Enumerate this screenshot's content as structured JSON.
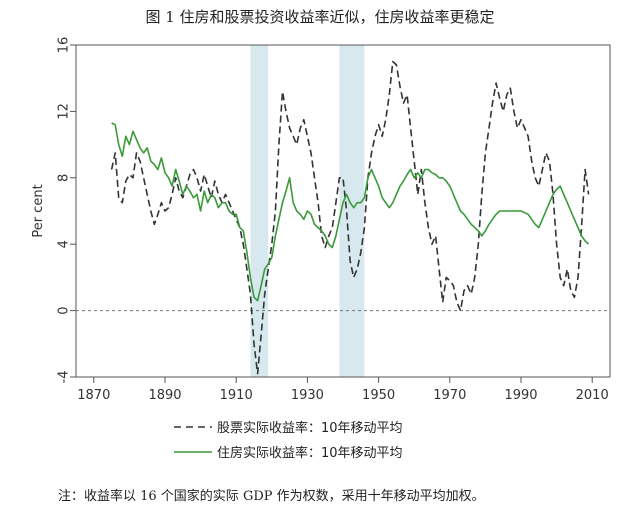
{
  "title": "图 1  住房和股票投资收益率近似，住房收益率更稳定",
  "note": "注：收益率以 16 个国家的实际 GDP 作为权数，采用十年移动平均加权。",
  "chart_data": {
    "type": "line",
    "ylabel": "Per cent",
    "xlim": [
      1865,
      2015
    ],
    "ylim": [
      -4,
      16
    ],
    "x_ticks": [
      1870,
      1890,
      1910,
      1930,
      1950,
      1970,
      1990,
      2010
    ],
    "y_ticks": [
      -4,
      0,
      4,
      8,
      12,
      16
    ],
    "shaded_periods": [
      [
        1914,
        1919
      ],
      [
        1939,
        1946
      ]
    ],
    "reference_line": 0,
    "legend_position": "bottom",
    "colors": {
      "stock": "#333333",
      "housing": "#3a9a3a",
      "shade": "#d7e9ee"
    },
    "series": [
      {
        "name": "股票实际收益率：10年移动平均",
        "style": "dashed",
        "points": [
          [
            1875,
            8.5
          ],
          [
            1876,
            9.5
          ],
          [
            1877,
            6.8
          ],
          [
            1878,
            6.5
          ],
          [
            1879,
            7.8
          ],
          [
            1880,
            8.2
          ],
          [
            1881,
            8.0
          ],
          [
            1882,
            9.5
          ],
          [
            1883,
            9.0
          ],
          [
            1884,
            8.0
          ],
          [
            1885,
            7.0
          ],
          [
            1886,
            6.0
          ],
          [
            1887,
            5.2
          ],
          [
            1888,
            5.8
          ],
          [
            1889,
            6.5
          ],
          [
            1890,
            6.0
          ],
          [
            1891,
            6.2
          ],
          [
            1892,
            7.0
          ],
          [
            1893,
            8.0
          ],
          [
            1894,
            7.2
          ],
          [
            1895,
            6.8
          ],
          [
            1896,
            7.5
          ],
          [
            1897,
            8.2
          ],
          [
            1898,
            8.5
          ],
          [
            1899,
            8.0
          ],
          [
            1900,
            7.2
          ],
          [
            1901,
            8.2
          ],
          [
            1902,
            7.5
          ],
          [
            1903,
            6.8
          ],
          [
            1904,
            7.8
          ],
          [
            1905,
            7.0
          ],
          [
            1906,
            6.5
          ],
          [
            1907,
            7.0
          ],
          [
            1908,
            6.5
          ],
          [
            1909,
            6.0
          ],
          [
            1910,
            5.5
          ],
          [
            1911,
            5.0
          ],
          [
            1912,
            4.0
          ],
          [
            1913,
            2.5
          ],
          [
            1914,
            1.0
          ],
          [
            1915,
            -2.0
          ],
          [
            1916,
            -3.8
          ],
          [
            1917,
            -1.5
          ],
          [
            1918,
            1.0
          ],
          [
            1919,
            2.5
          ],
          [
            1920,
            4.0
          ],
          [
            1921,
            6.0
          ],
          [
            1922,
            10.0
          ],
          [
            1923,
            13.2
          ],
          [
            1924,
            12.0
          ],
          [
            1925,
            11.0
          ],
          [
            1926,
            10.5
          ],
          [
            1927,
            10.0
          ],
          [
            1928,
            11.0
          ],
          [
            1929,
            11.5
          ],
          [
            1930,
            10.5
          ],
          [
            1931,
            9.5
          ],
          [
            1932,
            8.0
          ],
          [
            1933,
            6.5
          ],
          [
            1934,
            4.5
          ],
          [
            1935,
            3.8
          ],
          [
            1936,
            4.5
          ],
          [
            1937,
            5.0
          ],
          [
            1938,
            6.5
          ],
          [
            1939,
            8.0
          ],
          [
            1940,
            8.0
          ],
          [
            1941,
            6.0
          ],
          [
            1942,
            3.0
          ],
          [
            1943,
            2.0
          ],
          [
            1944,
            2.5
          ],
          [
            1945,
            3.5
          ],
          [
            1946,
            5.0
          ],
          [
            1947,
            8.0
          ],
          [
            1948,
            9.5
          ],
          [
            1949,
            10.5
          ],
          [
            1950,
            11.2
          ],
          [
            1951,
            10.5
          ],
          [
            1952,
            11.5
          ],
          [
            1953,
            13.0
          ],
          [
            1954,
            15.0
          ],
          [
            1955,
            14.8
          ],
          [
            1956,
            13.5
          ],
          [
            1957,
            12.5
          ],
          [
            1958,
            13.0
          ],
          [
            1959,
            11.0
          ],
          [
            1960,
            9.0
          ],
          [
            1961,
            7.0
          ],
          [
            1962,
            8.5
          ],
          [
            1963,
            6.5
          ],
          [
            1964,
            5.0
          ],
          [
            1965,
            4.0
          ],
          [
            1966,
            4.5
          ],
          [
            1967,
            2.5
          ],
          [
            1968,
            0.5
          ],
          [
            1969,
            2.0
          ],
          [
            1970,
            1.8
          ],
          [
            1971,
            1.5
          ],
          [
            1972,
            0.5
          ],
          [
            1973,
            0.0
          ],
          [
            1974,
            1.2
          ],
          [
            1975,
            1.5
          ],
          [
            1976,
            1.0
          ],
          [
            1977,
            2.0
          ],
          [
            1978,
            4.0
          ],
          [
            1979,
            7.0
          ],
          [
            1980,
            9.5
          ],
          [
            1981,
            11.0
          ],
          [
            1982,
            12.5
          ],
          [
            1983,
            13.7
          ],
          [
            1984,
            12.8
          ],
          [
            1985,
            12.0
          ],
          [
            1986,
            13.0
          ],
          [
            1987,
            13.4
          ],
          [
            1988,
            12.0
          ],
          [
            1989,
            11.0
          ],
          [
            1990,
            11.5
          ],
          [
            1991,
            11.0
          ],
          [
            1992,
            10.5
          ],
          [
            1993,
            9.0
          ],
          [
            1994,
            8.0
          ],
          [
            1995,
            7.5
          ],
          [
            1996,
            8.5
          ],
          [
            1997,
            9.5
          ],
          [
            1998,
            9.0
          ],
          [
            1999,
            7.0
          ],
          [
            2000,
            4.0
          ],
          [
            2001,
            2.0
          ],
          [
            2002,
            1.5
          ],
          [
            2003,
            2.5
          ],
          [
            2004,
            1.2
          ],
          [
            2005,
            0.8
          ],
          [
            2006,
            2.0
          ],
          [
            2007,
            5.0
          ],
          [
            2008,
            8.5
          ],
          [
            2009,
            7.0
          ]
        ]
      },
      {
        "name": "住房实际收益率：10年移动平均",
        "style": "solid",
        "points": [
          [
            1875,
            11.3
          ],
          [
            1876,
            11.2
          ],
          [
            1877,
            10.0
          ],
          [
            1878,
            9.3
          ],
          [
            1879,
            10.5
          ],
          [
            1880,
            10.0
          ],
          [
            1881,
            10.8
          ],
          [
            1882,
            10.3
          ],
          [
            1883,
            9.8
          ],
          [
            1884,
            9.5
          ],
          [
            1885,
            9.8
          ],
          [
            1886,
            9.0
          ],
          [
            1887,
            8.8
          ],
          [
            1888,
            8.5
          ],
          [
            1889,
            9.2
          ],
          [
            1890,
            8.3
          ],
          [
            1891,
            8.0
          ],
          [
            1892,
            7.5
          ],
          [
            1893,
            8.5
          ],
          [
            1894,
            7.8
          ],
          [
            1895,
            7.0
          ],
          [
            1896,
            7.5
          ],
          [
            1897,
            7.2
          ],
          [
            1898,
            6.8
          ],
          [
            1899,
            7.0
          ],
          [
            1900,
            6.0
          ],
          [
            1901,
            7.2
          ],
          [
            1902,
            6.5
          ],
          [
            1903,
            7.0
          ],
          [
            1904,
            6.8
          ],
          [
            1905,
            6.2
          ],
          [
            1906,
            6.5
          ],
          [
            1907,
            6.5
          ],
          [
            1908,
            6.0
          ],
          [
            1909,
            5.8
          ],
          [
            1910,
            5.8
          ],
          [
            1911,
            5.0
          ],
          [
            1912,
            4.8
          ],
          [
            1913,
            3.5
          ],
          [
            1914,
            2.0
          ],
          [
            1915,
            0.8
          ],
          [
            1916,
            0.6
          ],
          [
            1917,
            1.5
          ],
          [
            1918,
            2.5
          ],
          [
            1919,
            2.8
          ],
          [
            1920,
            3.2
          ],
          [
            1921,
            4.5
          ],
          [
            1922,
            5.5
          ],
          [
            1923,
            6.5
          ],
          [
            1924,
            7.2
          ],
          [
            1925,
            8.0
          ],
          [
            1926,
            6.5
          ],
          [
            1927,
            6.0
          ],
          [
            1928,
            5.8
          ],
          [
            1929,
            5.5
          ],
          [
            1930,
            6.0
          ],
          [
            1931,
            5.8
          ],
          [
            1932,
            5.2
          ],
          [
            1933,
            5.0
          ],
          [
            1934,
            4.8
          ],
          [
            1935,
            4.5
          ],
          [
            1936,
            4.0
          ],
          [
            1937,
            3.8
          ],
          [
            1938,
            4.5
          ],
          [
            1939,
            5.5
          ],
          [
            1940,
            6.5
          ],
          [
            1941,
            7.0
          ],
          [
            1942,
            6.5
          ],
          [
            1943,
            6.2
          ],
          [
            1944,
            6.5
          ],
          [
            1945,
            6.5
          ],
          [
            1946,
            6.8
          ],
          [
            1947,
            8.0
          ],
          [
            1948,
            8.5
          ],
          [
            1949,
            8.0
          ],
          [
            1950,
            7.5
          ],
          [
            1951,
            6.8
          ],
          [
            1952,
            6.5
          ],
          [
            1953,
            6.2
          ],
          [
            1954,
            6.5
          ],
          [
            1955,
            7.0
          ],
          [
            1956,
            7.5
          ],
          [
            1957,
            7.8
          ],
          [
            1958,
            8.2
          ],
          [
            1959,
            8.5
          ],
          [
            1960,
            8.0
          ],
          [
            1961,
            8.3
          ],
          [
            1962,
            8.0
          ],
          [
            1963,
            8.5
          ],
          [
            1964,
            8.5
          ],
          [
            1965,
            8.3
          ],
          [
            1966,
            8.2
          ],
          [
            1967,
            8.0
          ],
          [
            1968,
            8.0
          ],
          [
            1969,
            7.8
          ],
          [
            1970,
            7.5
          ],
          [
            1971,
            7.0
          ],
          [
            1972,
            6.5
          ],
          [
            1973,
            6.0
          ],
          [
            1974,
            5.8
          ],
          [
            1975,
            5.5
          ],
          [
            1976,
            5.2
          ],
          [
            1977,
            5.0
          ],
          [
            1978,
            4.8
          ],
          [
            1979,
            4.5
          ],
          [
            1980,
            4.8
          ],
          [
            1981,
            5.2
          ],
          [
            1982,
            5.5
          ],
          [
            1983,
            5.8
          ],
          [
            1984,
            6.0
          ],
          [
            1985,
            6.0
          ],
          [
            1986,
            6.0
          ],
          [
            1987,
            6.0
          ],
          [
            1988,
            6.0
          ],
          [
            1989,
            6.0
          ],
          [
            1990,
            6.0
          ],
          [
            1991,
            5.9
          ],
          [
            1992,
            5.8
          ],
          [
            1993,
            5.5
          ],
          [
            1994,
            5.2
          ],
          [
            1995,
            5.0
          ],
          [
            1996,
            5.5
          ],
          [
            1997,
            6.0
          ],
          [
            1998,
            6.5
          ],
          [
            1999,
            7.0
          ],
          [
            2000,
            7.3
          ],
          [
            2001,
            7.5
          ],
          [
            2002,
            7.0
          ],
          [
            2003,
            6.5
          ],
          [
            2004,
            6.0
          ],
          [
            2005,
            5.5
          ],
          [
            2006,
            5.0
          ],
          [
            2007,
            4.5
          ],
          [
            2008,
            4.2
          ],
          [
            2009,
            4.0
          ]
        ]
      }
    ]
  }
}
